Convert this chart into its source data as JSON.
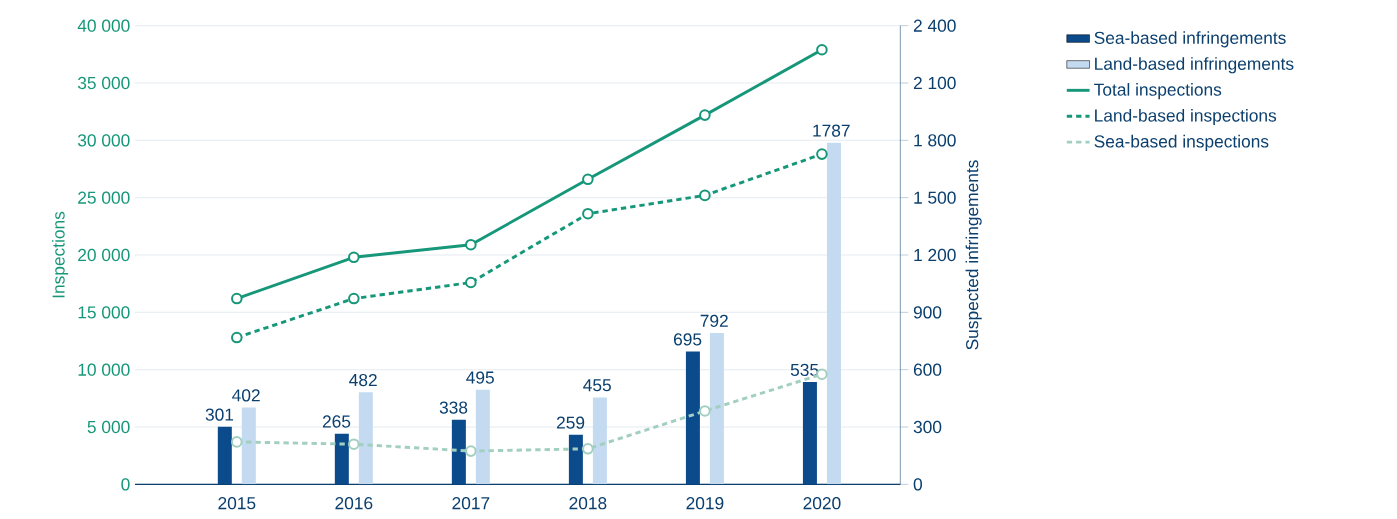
{
  "chart_data": {
    "type": "line",
    "categories": [
      "2015",
      "2016",
      "2017",
      "2018",
      "2019",
      "2020"
    ],
    "ylabel": "Inspections",
    "y2label": "Suspected infringements",
    "ylim": [
      0,
      40000
    ],
    "yticks": [
      0,
      {
        "value": 5000,
        "label": "5 000"
      },
      {
        "value": 10000,
        "label": "10 000"
      },
      {
        "value": 15000,
        "label": "15 000"
      },
      {
        "value": 20000,
        "label": "20 000"
      },
      {
        "value": 25000,
        "label": "25 000"
      },
      {
        "value": 30000,
        "label": "30 000"
      },
      {
        "value": 35000,
        "label": "35 000"
      },
      {
        "value": 40000,
        "label": "40 000"
      }
    ],
    "y2lim": [
      0,
      2400
    ],
    "y2ticks": [
      0,
      300,
      600,
      900,
      {
        "value": 1200,
        "label": "1 200"
      },
      {
        "value": 1500,
        "label": "1 500"
      },
      {
        "value": 1800,
        "label": "1 800"
      },
      {
        "value": 2100,
        "label": "2 100"
      },
      {
        "value": 2400,
        "label": "2 400"
      }
    ],
    "grid": "y",
    "legend": "right",
    "marker": "circle",
    "series": [
      {
        "name": "Sea-based infringements",
        "type": "bar",
        "axis": "y2",
        "color": "#0b4a8b",
        "values": [
          301,
          265,
          338,
          259,
          695,
          535
        ],
        "value_labels": [
          "301",
          "265",
          "338",
          "259",
          "695",
          "535"
        ]
      },
      {
        "name": "Land-based infringements",
        "type": "bar",
        "axis": "y2",
        "color": "#c3daf0",
        "values": [
          402,
          482,
          495,
          455,
          792,
          1787
        ],
        "value_labels": [
          "402",
          "482",
          "495",
          "455",
          "792",
          "1787"
        ]
      },
      {
        "name": "Total inspections",
        "line_style": "solid",
        "color": "#17977a",
        "values": [
          16200,
          19800,
          20900,
          26600,
          32200,
          37900
        ]
      },
      {
        "name": "Land-based inspections",
        "line_style": "dotted",
        "color": "#17977a",
        "values": [
          12800,
          16200,
          17600,
          23600,
          25200,
          28800
        ]
      },
      {
        "name": "Sea-based inspections",
        "line_style": "dotted",
        "color": "#a3cfc0",
        "values": [
          3700,
          3500,
          2900,
          3100,
          6400,
          9600
        ]
      }
    ]
  }
}
